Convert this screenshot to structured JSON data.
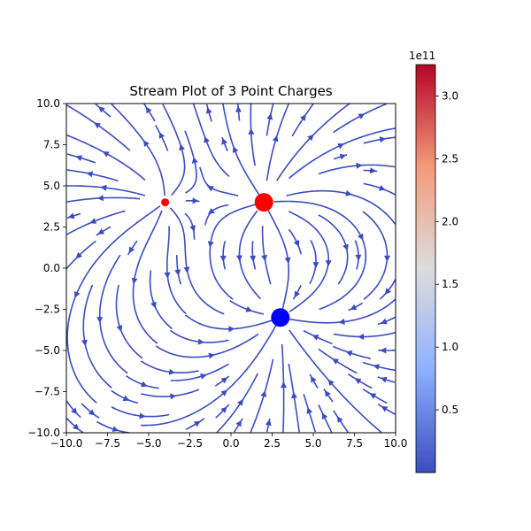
{
  "chart_data": {
    "type": "streamplot",
    "title": "Stream Plot of 3 Point Charges",
    "xlabel": "",
    "ylabel": "",
    "xlim": [
      -10,
      10
    ],
    "ylim": [
      -10,
      10
    ],
    "x_ticks": [
      -10,
      -7.5,
      -5,
      -2.5,
      0,
      2.5,
      5,
      7.5,
      10
    ],
    "x_tick_labels": [
      "−10.0",
      "−7.5",
      "−5.0",
      "−2.5",
      "0.0",
      "2.5",
      "5.0",
      "7.5",
      "10.0"
    ],
    "y_ticks": [
      -10,
      -7.5,
      -5,
      -2.5,
      0,
      2.5,
      5,
      7.5,
      10
    ],
    "y_tick_labels": [
      "−10.0",
      "−7.5",
      "−5.0",
      "−2.5",
      "0.0",
      "2.5",
      "5.0",
      "7.5",
      "10.0"
    ],
    "charges": [
      {
        "x": -4,
        "y": 4,
        "sign": "positive",
        "color": "#ff0000",
        "relative_size": "small"
      },
      {
        "x": 2,
        "y": 4,
        "sign": "positive",
        "color": "#ff0000",
        "relative_size": "large"
      },
      {
        "x": 3,
        "y": -3,
        "sign": "negative",
        "color": "#0000ff",
        "relative_size": "large"
      }
    ],
    "colorbar": {
      "colormap": "coolwarm",
      "min": 0,
      "max": 3.25,
      "ticks": [
        0.5,
        1.0,
        1.5,
        2.0,
        2.5,
        3.0
      ],
      "tick_labels": [
        "0.5",
        "1.0",
        "1.5",
        "2.0",
        "2.5",
        "3.0"
      ],
      "offset_label": "1e11"
    },
    "stream_color": "#3b4cc0",
    "grid": false
  }
}
